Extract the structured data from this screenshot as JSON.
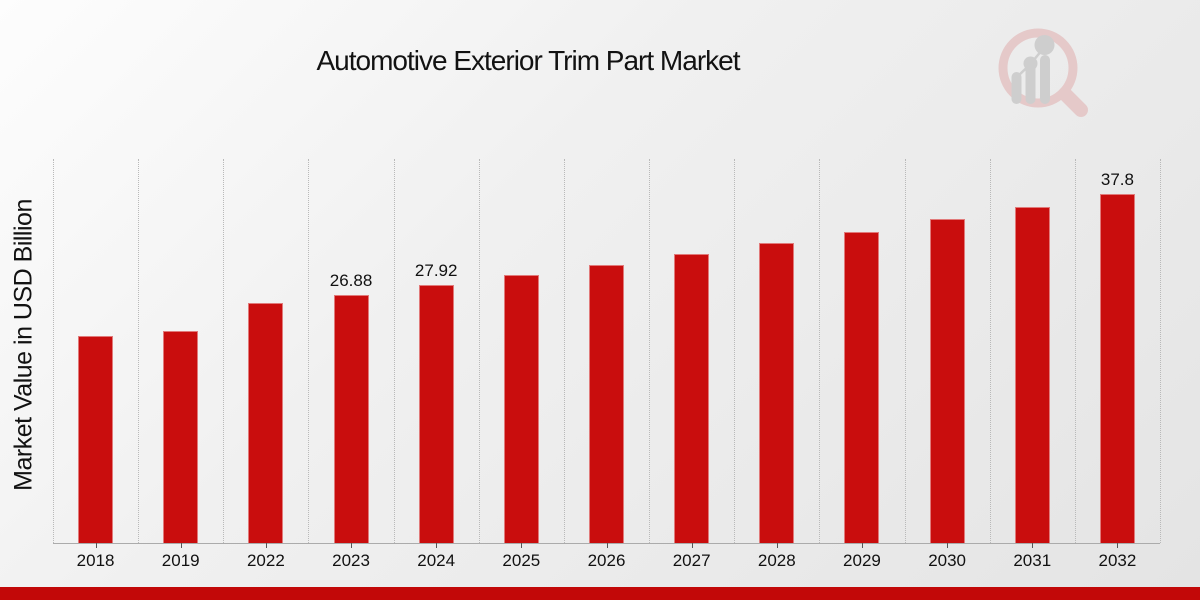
{
  "chart_data": {
    "type": "bar",
    "title": "Automotive Exterior Trim Part Market",
    "ylabel": "Market Value in USD Billion",
    "xlabel": "",
    "categories": [
      "2018",
      "2019",
      "2022",
      "2023",
      "2024",
      "2025",
      "2026",
      "2027",
      "2028",
      "2029",
      "2030",
      "2031",
      "2032"
    ],
    "values": [
      22.4,
      23.0,
      26.0,
      26.88,
      27.92,
      29.0,
      30.1,
      31.3,
      32.5,
      33.7,
      35.1,
      36.4,
      37.8
    ],
    "data_labels": [
      "",
      "",
      "",
      "26.88",
      "27.92",
      "",
      "",
      "",
      "",
      "",
      "",
      "",
      "37.8"
    ],
    "ylim": [
      0,
      41.6
    ],
    "bar_color": "#c90d0d",
    "grid": "vertical-dotted-gridlines",
    "legend": "none"
  },
  "branding": {
    "watermark_icon": "magnifier-bar-chart-logo",
    "ring_color": "#e4c4c4",
    "bars_color": "#c9c9c9"
  },
  "footer": {
    "accent_color": "#c20808"
  }
}
